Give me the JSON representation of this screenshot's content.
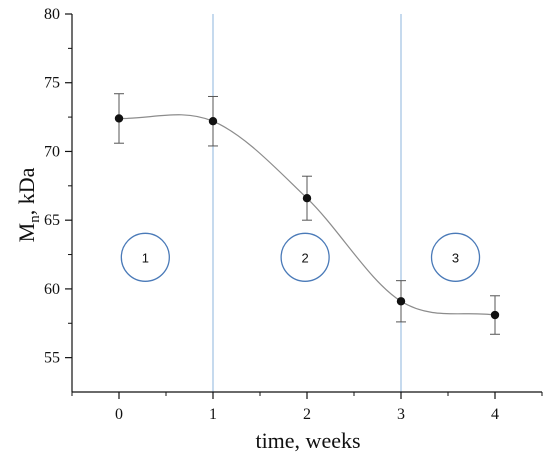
{
  "chart_data": {
    "type": "scatter",
    "xlabel": "time, weeks",
    "ylabel_main": "M",
    "ylabel_sub": "n",
    "ylabel_unit": ", kDa",
    "xlim": [
      -0.5,
      4.5
    ],
    "ylim": [
      52.5,
      80
    ],
    "xticks": [
      0,
      1,
      2,
      3,
      4
    ],
    "xtick_labels": [
      "0",
      "1",
      "2",
      "3",
      "4"
    ],
    "yticks": [
      55,
      60,
      65,
      70,
      75,
      80
    ],
    "ytick_labels": [
      "55",
      "60",
      "65",
      "70",
      "75",
      "80"
    ],
    "grid": false,
    "series": [
      {
        "x": [
          0,
          1,
          2,
          3,
          4
        ],
        "y": [
          72.4,
          72.2,
          66.6,
          59.1,
          58.1
        ],
        "error": [
          1.8,
          1.8,
          1.6,
          1.5,
          1.4
        ],
        "marker_color": "#111111",
        "fit_color": "#8c8c8c"
      }
    ],
    "vlines": [
      1,
      3
    ],
    "vline_color": "#8db4dc",
    "zones": [
      {
        "label": "1",
        "x": 0.28,
        "y": 62.3
      },
      {
        "label": "2",
        "x": 1.98,
        "y": 62.3
      },
      {
        "label": "3",
        "x": 3.58,
        "y": 62.3
      }
    ],
    "zone_color": "#4a7ab8"
  }
}
